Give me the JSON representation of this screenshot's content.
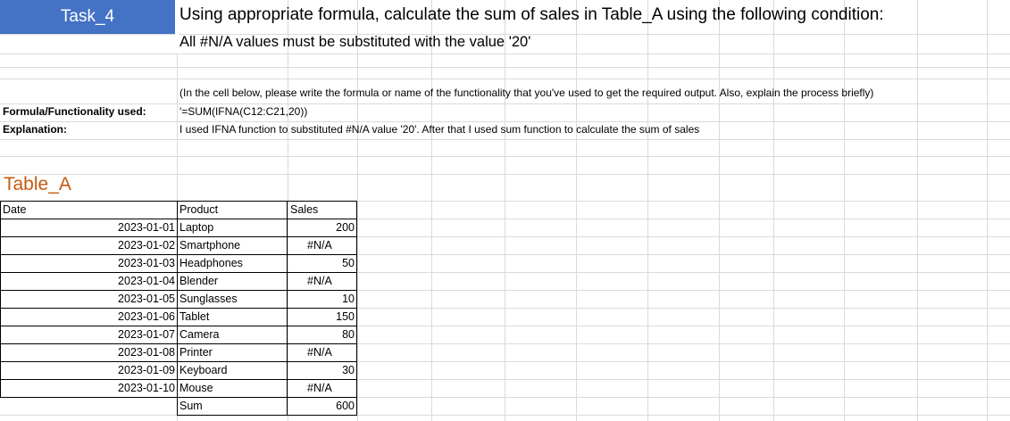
{
  "task": {
    "label": "Task_4"
  },
  "instructions": {
    "line1": "Using appropriate formula, calculate the sum of sales in Table_A using the following condition:",
    "line2": "All #N/A values must be substituted with the value '20'"
  },
  "note": "(In the cell below, please write the formula or name of the functionality that you've used to get the required output. Also, explain the process briefly)",
  "formula": {
    "label": "Formula/Functionality used:",
    "value": "'=SUM(IFNA(C12:C21,20))"
  },
  "explanation": {
    "label": "Explanation:",
    "value": "I used IFNA function to substituted #N/A value '20'. After that I used sum function to calculate the sum of sales"
  },
  "table": {
    "title": "Table_A",
    "headers": {
      "date": "Date",
      "product": "Product",
      "sales": "Sales"
    },
    "rows": [
      {
        "date": "2023-01-01",
        "product": "Laptop",
        "sales": "200"
      },
      {
        "date": "2023-01-02",
        "product": "Smartphone",
        "sales": "#N/A"
      },
      {
        "date": "2023-01-03",
        "product": "Headphones",
        "sales": "50"
      },
      {
        "date": "2023-01-04",
        "product": "Blender",
        "sales": "#N/A"
      },
      {
        "date": "2023-01-05",
        "product": "Sunglasses",
        "sales": "10"
      },
      {
        "date": "2023-01-06",
        "product": "Tablet",
        "sales": "150"
      },
      {
        "date": "2023-01-07",
        "product": "Camera",
        "sales": "80"
      },
      {
        "date": "2023-01-08",
        "product": "Printer",
        "sales": "#N/A"
      },
      {
        "date": "2023-01-09",
        "product": "Keyboard",
        "sales": "30"
      },
      {
        "date": "2023-01-10",
        "product": "Mouse",
        "sales": "#N/A"
      }
    ],
    "sum": {
      "label": "Sum",
      "value": "600"
    }
  },
  "colors": {
    "task_fill": "#4472c4",
    "table_title": "#c55a11",
    "gridline": "#dadada"
  }
}
